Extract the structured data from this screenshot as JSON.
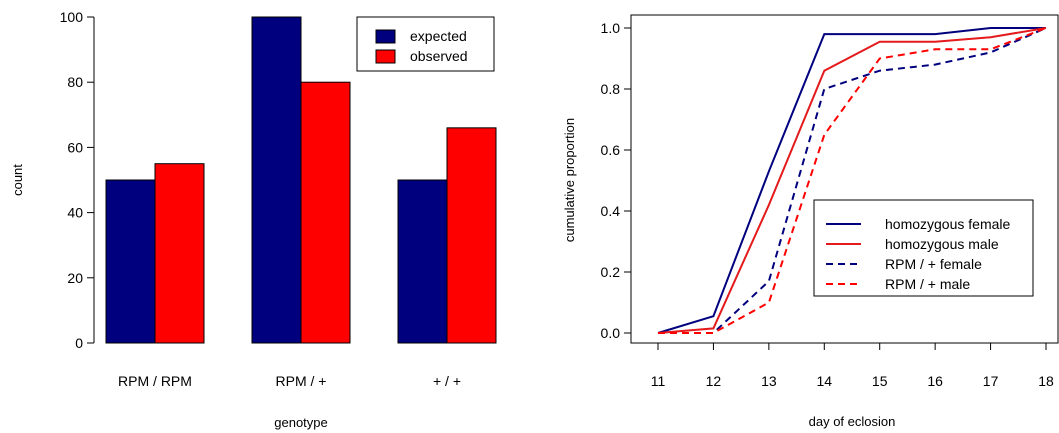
{
  "chart_data": [
    {
      "type": "bar",
      "categories": [
        "RPM / RPM",
        "RPM / +",
        "+ / +"
      ],
      "series": [
        {
          "name": "expected",
          "values": [
            50,
            100,
            50
          ],
          "color": "#00007f"
        },
        {
          "name": "observed",
          "values": [
            55,
            80,
            66
          ],
          "color": "#ff0000"
        }
      ],
      "xlabel": "genotype",
      "ylabel": "count",
      "ylim": [
        0,
        100
      ],
      "yticks": [
        0,
        20,
        40,
        60,
        80,
        100
      ],
      "legend": "top-right",
      "grid": false
    },
    {
      "type": "line",
      "x": [
        11,
        12,
        13,
        14,
        15,
        16,
        17,
        18
      ],
      "series": [
        {
          "name": "homozygous female",
          "values": [
            0.0,
            0.055,
            0.53,
            0.98,
            0.98,
            0.98,
            1.0,
            1.0
          ],
          "color": "#00007f",
          "dash": "solid"
        },
        {
          "name": "homozygous male",
          "values": [
            0.0,
            0.015,
            0.42,
            0.86,
            0.955,
            0.955,
            0.97,
            1.0
          ],
          "color": "#e41a1c",
          "dash": "solid"
        },
        {
          "name": "RPM / + female",
          "values": [
            0.0,
            0.0,
            0.17,
            0.8,
            0.86,
            0.88,
            0.92,
            1.0
          ],
          "color": "#00007f",
          "dash": "dashed"
        },
        {
          "name": "RPM / + male",
          "values": [
            0.0,
            0.0,
            0.1,
            0.65,
            0.9,
            0.93,
            0.93,
            1.0
          ],
          "color": "#ff0000",
          "dash": "dashed"
        }
      ],
      "xlabel": "day of eclosion",
      "ylabel": "cumulative proportion",
      "xlim": [
        11,
        18
      ],
      "ylim": [
        0,
        1
      ],
      "xticks": [
        11,
        12,
        13,
        14,
        15,
        16,
        17,
        18
      ],
      "yticks": [
        "0.0",
        "0.2",
        "0.4",
        "0.6",
        "0.8",
        "1.0"
      ],
      "legend": "bottom-right",
      "grid": false
    }
  ]
}
